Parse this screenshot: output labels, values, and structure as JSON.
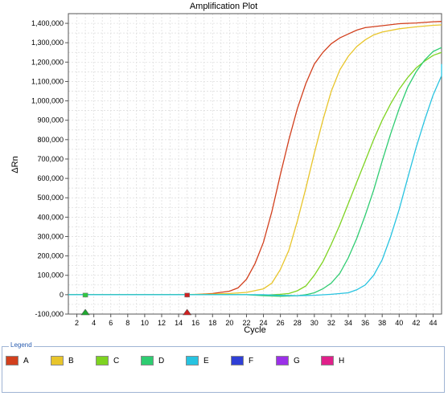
{
  "chart_data": {
    "type": "line",
    "title": "Amplification Plot",
    "xlabel": "Cycle",
    "ylabel": "ΔRn",
    "xlim": [
      1,
      45
    ],
    "ylim": [
      -100000,
      1450000
    ],
    "x_ticks": [
      2,
      4,
      6,
      8,
      10,
      12,
      14,
      16,
      18,
      20,
      22,
      24,
      26,
      28,
      30,
      32,
      34,
      36,
      38,
      40,
      42,
      44
    ],
    "y_ticks": [
      {
        "value": 1400000,
        "label": "1,400,000"
      },
      {
        "value": 1300000,
        "label": "1,300,000"
      },
      {
        "value": 1200000,
        "label": "1,200,000"
      },
      {
        "value": 1100000,
        "label": "1,100,000"
      },
      {
        "value": 1000000,
        "label": "1,000,000"
      },
      {
        "value": 900000,
        "label": "900,000"
      },
      {
        "value": 800000,
        "label": "800,000"
      },
      {
        "value": 700000,
        "label": "700,000"
      },
      {
        "value": 600000,
        "label": "600,000"
      },
      {
        "value": 500000,
        "label": "500,000"
      },
      {
        "value": 400000,
        "label": "400,000"
      },
      {
        "value": 300000,
        "label": "300,000"
      },
      {
        "value": 200000,
        "label": "200,000"
      },
      {
        "value": 100000,
        "label": "100,000"
      },
      {
        "value": 0,
        "label": "0"
      },
      {
        "value": -100000,
        "label": "-100,000"
      }
    ],
    "grid": true,
    "baseline_markers": [
      {
        "cycle": 3,
        "color": "#2ecc40",
        "arrow": "#1fa830"
      },
      {
        "cycle": 15,
        "color": "#d02020",
        "arrow": "#d02020"
      }
    ],
    "series": [
      {
        "name": "A",
        "color": "#d2401e",
        "points": [
          [
            1,
            0
          ],
          [
            14,
            0
          ],
          [
            16,
            1000
          ],
          [
            18,
            6000
          ],
          [
            20,
            18000
          ],
          [
            21,
            35000
          ],
          [
            22,
            80000
          ],
          [
            23,
            160000
          ],
          [
            24,
            270000
          ],
          [
            25,
            430000
          ],
          [
            26,
            620000
          ],
          [
            27,
            800000
          ],
          [
            28,
            960000
          ],
          [
            29,
            1090000
          ],
          [
            30,
            1190000
          ],
          [
            31,
            1250000
          ],
          [
            32,
            1295000
          ],
          [
            33,
            1325000
          ],
          [
            34,
            1345000
          ],
          [
            35,
            1365000
          ],
          [
            36,
            1378000
          ],
          [
            38,
            1388000
          ],
          [
            40,
            1398000
          ],
          [
            42,
            1402000
          ],
          [
            44,
            1408000
          ],
          [
            45,
            1410000
          ]
        ]
      },
      {
        "name": "B",
        "color": "#e8c52b",
        "points": [
          [
            1,
            0
          ],
          [
            14,
            0
          ],
          [
            18,
            3000
          ],
          [
            20,
            6000
          ],
          [
            22,
            12000
          ],
          [
            24,
            30000
          ],
          [
            25,
            60000
          ],
          [
            26,
            130000
          ],
          [
            27,
            230000
          ],
          [
            28,
            380000
          ],
          [
            29,
            550000
          ],
          [
            30,
            730000
          ],
          [
            31,
            900000
          ],
          [
            32,
            1050000
          ],
          [
            33,
            1160000
          ],
          [
            34,
            1230000
          ],
          [
            35,
            1280000
          ],
          [
            36,
            1315000
          ],
          [
            37,
            1340000
          ],
          [
            38,
            1355000
          ],
          [
            40,
            1372000
          ],
          [
            42,
            1382000
          ],
          [
            44,
            1390000
          ],
          [
            45,
            1392000
          ]
        ]
      },
      {
        "name": "C",
        "color": "#7ed321",
        "points": [
          [
            1,
            0
          ],
          [
            22,
            0
          ],
          [
            24,
            -2000
          ],
          [
            26,
            2000
          ],
          [
            27,
            6000
          ],
          [
            28,
            20000
          ],
          [
            29,
            45000
          ],
          [
            30,
            100000
          ],
          [
            31,
            170000
          ],
          [
            32,
            260000
          ],
          [
            33,
            360000
          ],
          [
            34,
            470000
          ],
          [
            35,
            580000
          ],
          [
            36,
            690000
          ],
          [
            37,
            800000
          ],
          [
            38,
            900000
          ],
          [
            39,
            985000
          ],
          [
            40,
            1060000
          ],
          [
            41,
            1120000
          ],
          [
            42,
            1170000
          ],
          [
            43,
            1205000
          ],
          [
            44,
            1235000
          ],
          [
            45,
            1250000
          ]
        ]
      },
      {
        "name": "D",
        "color": "#2ecc71",
        "points": [
          [
            1,
            0
          ],
          [
            22,
            0
          ],
          [
            24,
            -5000
          ],
          [
            26,
            -8000
          ],
          [
            28,
            -5000
          ],
          [
            29,
            0
          ],
          [
            30,
            10000
          ],
          [
            31,
            30000
          ],
          [
            32,
            60000
          ],
          [
            33,
            110000
          ],
          [
            34,
            190000
          ],
          [
            35,
            290000
          ],
          [
            36,
            410000
          ],
          [
            37,
            540000
          ],
          [
            38,
            690000
          ],
          [
            39,
            830000
          ],
          [
            40,
            960000
          ],
          [
            41,
            1070000
          ],
          [
            42,
            1150000
          ],
          [
            43,
            1210000
          ],
          [
            44,
            1255000
          ],
          [
            45,
            1275000
          ]
        ]
      },
      {
        "name": "E",
        "color": "#27c3e0",
        "points": [
          [
            1,
            0
          ],
          [
            24,
            0
          ],
          [
            26,
            -3000
          ],
          [
            28,
            -5000
          ],
          [
            30,
            -3000
          ],
          [
            32,
            2000
          ],
          [
            34,
            10000
          ],
          [
            35,
            25000
          ],
          [
            36,
            50000
          ],
          [
            37,
            100000
          ],
          [
            38,
            180000
          ],
          [
            39,
            300000
          ],
          [
            40,
            440000
          ],
          [
            41,
            600000
          ],
          [
            42,
            760000
          ],
          [
            43,
            900000
          ],
          [
            44,
            1030000
          ],
          [
            45,
            1130000
          ],
          [
            45.5,
            1190000
          ]
        ]
      }
    ]
  },
  "legend": {
    "title": "Legend",
    "items": [
      {
        "label": "A",
        "color": "#d2401e"
      },
      {
        "label": "B",
        "color": "#e8c52b"
      },
      {
        "label": "C",
        "color": "#7ed321"
      },
      {
        "label": "D",
        "color": "#2ecc71"
      },
      {
        "label": "E",
        "color": "#27c3e0"
      },
      {
        "label": "F",
        "color": "#2f3fd6"
      },
      {
        "label": "G",
        "color": "#9b30e8"
      },
      {
        "label": "H",
        "color": "#e0208a"
      }
    ]
  }
}
